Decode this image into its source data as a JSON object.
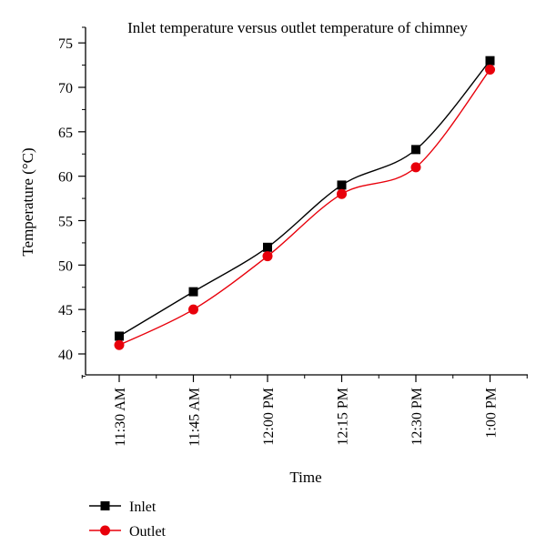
{
  "chart_data": {
    "type": "line",
    "title": "Inlet temperature versus outlet temperature of chimney",
    "xlabel": "Time",
    "ylabel": "Temperature (°C)",
    "categories": [
      "11:30 AM",
      "11:45 AM",
      "12:00 PM",
      "12:15 PM",
      "12:30 PM",
      "1:00 PM"
    ],
    "ylim": [
      37,
      77
    ],
    "yticks": [
      40,
      45,
      50,
      55,
      60,
      65,
      70,
      75
    ],
    "grid": false,
    "legend_position": "bottom-left",
    "series": [
      {
        "name": "Inlet",
        "values": [
          42,
          47,
          52,
          59,
          63,
          73
        ],
        "color": "#000000",
        "marker": "square"
      },
      {
        "name": "Outlet",
        "values": [
          41,
          45,
          51,
          58,
          61,
          72
        ],
        "color": "#e8000b",
        "marker": "circle"
      }
    ]
  }
}
